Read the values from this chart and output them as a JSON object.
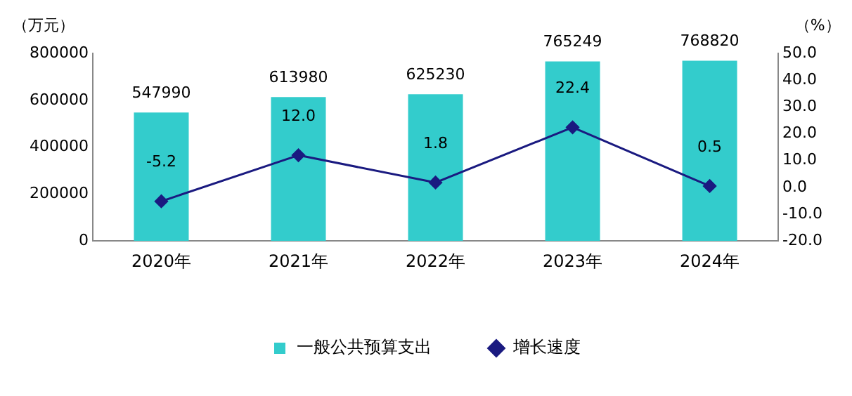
{
  "chart_data": {
    "type": "bar",
    "categories": [
      "2020年",
      "2021年",
      "2022年",
      "2023年",
      "2024年"
    ],
    "series": [
      {
        "name": "一般公共预算支出",
        "color": "#33cccc",
        "values": [
          547990,
          613980,
          625230,
          765249,
          768820
        ]
      },
      {
        "name": "增长速度",
        "type": "line",
        "axis": "y2",
        "color": "#1a1a80",
        "marker": "diamond",
        "values": [
          -5.2,
          12.0,
          1.8,
          22.4,
          0.5
        ],
        "value_labels": [
          "-5.2",
          "12.0",
          "1.8",
          "22.4",
          "0.5"
        ]
      }
    ],
    "ylabel": "（万元）",
    "y2label": "（%）",
    "ylim": [
      0,
      800000
    ],
    "yticks": [
      0,
      200000,
      400000,
      600000,
      800000
    ],
    "y2lim": [
      -20,
      50
    ],
    "y2ticks": [
      {
        "value": -20,
        "label": "-20.0"
      },
      {
        "value": -10,
        "label": "-10.0"
      },
      {
        "value": 0,
        "label": "0.0"
      },
      {
        "value": 10,
        "label": "10.0"
      },
      {
        "value": 20,
        "label": "20.0"
      },
      {
        "value": 30,
        "label": "30.0"
      },
      {
        "value": 40,
        "label": "40.0"
      },
      {
        "value": 50,
        "label": "50.0"
      }
    ],
    "data_labels": true,
    "grid": false,
    "legend": "bottom"
  }
}
